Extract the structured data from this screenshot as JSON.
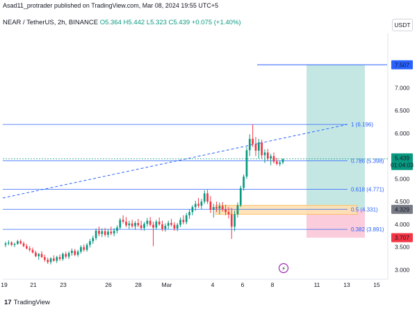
{
  "header": {
    "publisher": "Asad11_protrader published on TradingView.com, Mar 08, 2024 19:55 UTC+5"
  },
  "legend": {
    "symbol": "NEAR / TetherUS, 2h, BINANCE",
    "ohlc": "O5.364  H5.442  L5.323  C5.439  +0.075 (+1.40%)"
  },
  "currency_button": "USDT",
  "footer": {
    "brand": "TradingView"
  },
  "colors": {
    "up": "#089981",
    "down": "#f23645",
    "fib_line": "#2962ff",
    "target_zone": "#b2dfdb",
    "stop_zone": "#f8bbd0",
    "entry_zone": "#ffe0b2",
    "target_tag": "#2962ff",
    "stop_tag": "#f23645",
    "entry_tag": "#787b86",
    "price_tag": "#089981"
  },
  "chart_data": {
    "type": "candlestick",
    "symbol": "NEAR / TetherUS",
    "interval": "2h",
    "ylim": [
      2.9,
      8.0
    ],
    "y_ticks": [
      {
        "value": 3.0,
        "label": "3.000"
      },
      {
        "value": 3.5,
        "label": "3.500"
      },
      {
        "value": 4.0,
        "label": "4.000"
      },
      {
        "value": 4.5,
        "label": "4.500"
      },
      {
        "value": 5.0,
        "label": "5.000"
      },
      {
        "value": 5.5,
        "label": "5.500"
      },
      {
        "value": 6.0,
        "label": "6.000"
      },
      {
        "value": 6.5,
        "label": "6.500"
      },
      {
        "value": 7.0,
        "label": "7.000"
      }
    ],
    "x_ticks": [
      "19",
      "21",
      "23",
      "26",
      "28",
      "Mar",
      "4",
      "6",
      "8",
      "11",
      "13",
      "15"
    ],
    "price_tags": {
      "target": "7.507",
      "current": "5.439",
      "countdown": "01:04:03",
      "entry": "4.329",
      "stop": "3.707"
    },
    "fib_levels": [
      {
        "ratio": "1",
        "value": 6.196,
        "label": "1 (6.196)"
      },
      {
        "ratio": "0.786",
        "value": 5.398,
        "label": "0.786 (5.398)"
      },
      {
        "ratio": "0.618",
        "value": 4.771,
        "label": "0.618 (4.771)"
      },
      {
        "ratio": "0.5",
        "value": 4.331,
        "label": "0.5 (4.331)"
      },
      {
        "ratio": "0.382",
        "value": 3.891,
        "label": "0.382 (3.891)"
      }
    ],
    "trade_zones": {
      "target": 7.507,
      "entry_high": 4.42,
      "entry": 4.329,
      "entry_low": 4.22,
      "stop": 3.707
    },
    "candles": [
      [
        3.55,
        3.62,
        3.5,
        3.58
      ],
      [
        3.58,
        3.65,
        3.54,
        3.6
      ],
      [
        3.6,
        3.63,
        3.52,
        3.55
      ],
      [
        3.55,
        3.6,
        3.5,
        3.57
      ],
      [
        3.57,
        3.66,
        3.55,
        3.63
      ],
      [
        3.63,
        3.67,
        3.56,
        3.58
      ],
      [
        3.58,
        3.62,
        3.5,
        3.52
      ],
      [
        3.52,
        3.57,
        3.45,
        3.47
      ],
      [
        3.47,
        3.52,
        3.4,
        3.44
      ],
      [
        3.44,
        3.49,
        3.36,
        3.38
      ],
      [
        3.38,
        3.42,
        3.28,
        3.3
      ],
      [
        3.3,
        3.37,
        3.22,
        3.35
      ],
      [
        3.35,
        3.41,
        3.26,
        3.28
      ],
      [
        3.28,
        3.33,
        3.18,
        3.22
      ],
      [
        3.22,
        3.27,
        3.13,
        3.17
      ],
      [
        3.17,
        3.28,
        3.12,
        3.25
      ],
      [
        3.25,
        3.32,
        3.18,
        3.2
      ],
      [
        3.2,
        3.31,
        3.15,
        3.28
      ],
      [
        3.28,
        3.34,
        3.2,
        3.24
      ],
      [
        3.24,
        3.38,
        3.2,
        3.35
      ],
      [
        3.35,
        3.4,
        3.25,
        3.29
      ],
      [
        3.29,
        3.41,
        3.24,
        3.37
      ],
      [
        3.37,
        3.47,
        3.31,
        3.42
      ],
      [
        3.42,
        3.46,
        3.3,
        3.33
      ],
      [
        3.33,
        3.44,
        3.29,
        3.4
      ],
      [
        3.4,
        3.54,
        3.36,
        3.5
      ],
      [
        3.5,
        3.56,
        3.4,
        3.44
      ],
      [
        3.44,
        3.59,
        3.4,
        3.55
      ],
      [
        3.55,
        3.68,
        3.49,
        3.63
      ],
      [
        3.63,
        3.75,
        3.57,
        3.7
      ],
      [
        3.7,
        3.91,
        3.65,
        3.86
      ],
      [
        3.86,
        3.95,
        3.74,
        3.79
      ],
      [
        3.79,
        3.91,
        3.72,
        3.85
      ],
      [
        3.85,
        3.92,
        3.73,
        3.77
      ],
      [
        3.77,
        3.9,
        3.71,
        3.84
      ],
      [
        3.84,
        3.95,
        3.76,
        3.8
      ],
      [
        3.8,
        3.92,
        3.74,
        3.86
      ],
      [
        3.86,
        3.98,
        3.8,
        3.93
      ],
      [
        3.93,
        4.14,
        3.89,
        4.1
      ],
      [
        4.1,
        4.2,
        4.02,
        4.06
      ],
      [
        4.06,
        4.16,
        3.94,
        3.98
      ],
      [
        3.98,
        4.08,
        3.9,
        4.02
      ],
      [
        4.02,
        4.1,
        3.92,
        3.96
      ],
      [
        3.96,
        4.07,
        3.88,
        4.03
      ],
      [
        4.03,
        4.12,
        3.94,
        3.98
      ],
      [
        3.98,
        4.08,
        3.87,
        3.92
      ],
      [
        3.92,
        4.05,
        3.86,
        4.01
      ],
      [
        4.01,
        4.14,
        3.95,
        4.08
      ],
      [
        4.08,
        4.16,
        3.95,
        3.99
      ],
      [
        3.99,
        4.06,
        3.52,
        3.93
      ],
      [
        3.93,
        4.1,
        3.88,
        4.06
      ],
      [
        4.06,
        4.15,
        3.97,
        4.0
      ],
      [
        4.0,
        4.08,
        3.85,
        3.9
      ],
      [
        3.9,
        4.02,
        3.84,
        3.97
      ],
      [
        3.97,
        4.08,
        3.9,
        4.03
      ],
      [
        4.03,
        4.12,
        3.95,
        3.99
      ],
      [
        3.99,
        4.05,
        3.86,
        3.91
      ],
      [
        3.91,
        4.03,
        3.85,
        3.99
      ],
      [
        3.99,
        4.15,
        3.94,
        4.1
      ],
      [
        4.1,
        4.2,
        4.0,
        4.05
      ],
      [
        4.05,
        4.25,
        4.0,
        4.2
      ],
      [
        4.2,
        4.33,
        4.12,
        4.27
      ],
      [
        4.27,
        4.42,
        4.2,
        4.38
      ],
      [
        4.38,
        4.52,
        4.3,
        4.45
      ],
      [
        4.45,
        4.58,
        4.36,
        4.41
      ],
      [
        4.41,
        4.56,
        4.33,
        4.5
      ],
      [
        4.5,
        4.75,
        4.45,
        4.68
      ],
      [
        4.68,
        4.76,
        4.45,
        4.5
      ],
      [
        4.5,
        4.62,
        4.25,
        4.32
      ],
      [
        4.32,
        4.45,
        4.15,
        4.38
      ],
      [
        4.38,
        4.5,
        4.27,
        4.35
      ],
      [
        4.35,
        4.48,
        4.22,
        4.4
      ],
      [
        4.4,
        4.49,
        4.28,
        4.33
      ],
      [
        4.33,
        4.43,
        4.2,
        4.27
      ],
      [
        4.27,
        4.38,
        4.13,
        4.22
      ],
      [
        4.22,
        4.36,
        3.68,
        3.95
      ],
      [
        3.95,
        4.3,
        3.85,
        4.22
      ],
      [
        4.22,
        4.48,
        4.15,
        4.42
      ],
      [
        4.42,
        4.85,
        4.38,
        4.8
      ],
      [
        4.8,
        5.1,
        4.74,
        5.05
      ],
      [
        5.05,
        5.7,
        5.0,
        5.63
      ],
      [
        5.63,
        5.98,
        5.5,
        5.88
      ],
      [
        5.88,
        6.2,
        5.7,
        5.76
      ],
      [
        5.76,
        5.92,
        5.5,
        5.62
      ],
      [
        5.62,
        5.88,
        5.45,
        5.8
      ],
      [
        5.8,
        5.86,
        5.45,
        5.52
      ],
      [
        5.52,
        5.65,
        5.35,
        5.58
      ],
      [
        5.58,
        5.66,
        5.4,
        5.45
      ],
      [
        5.45,
        5.55,
        5.3,
        5.5
      ],
      [
        5.5,
        5.58,
        5.34,
        5.38
      ],
      [
        5.38,
        5.46,
        5.3,
        5.33
      ],
      [
        5.33,
        5.4,
        5.28,
        5.36
      ],
      [
        5.364,
        5.442,
        5.323,
        5.439
      ]
    ]
  }
}
